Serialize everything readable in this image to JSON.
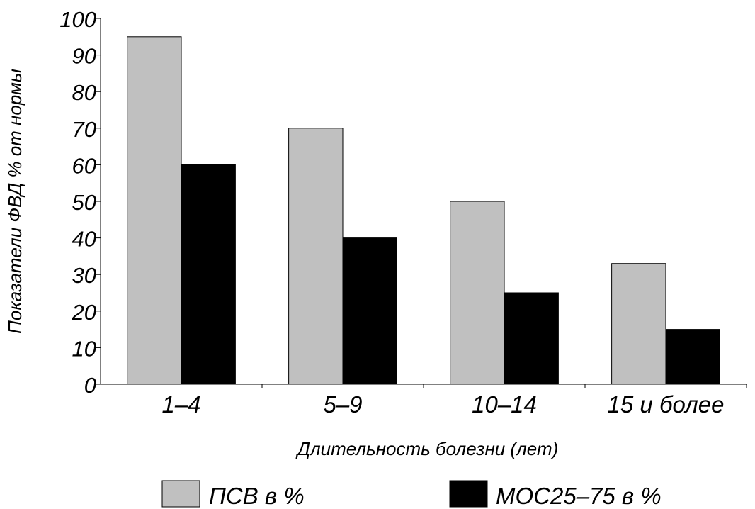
{
  "chart_data": {
    "type": "bar",
    "categories": [
      "1–4",
      "5–9",
      "10–14",
      "15 и более"
    ],
    "series": [
      {
        "name": "ПСВ в %",
        "color": "#c0c0c0",
        "values": [
          95,
          70,
          50,
          33
        ]
      },
      {
        "name": "МОС25–75 в %",
        "color": "#000000",
        "values": [
          60,
          40,
          25,
          15
        ]
      }
    ],
    "yticks": [
      "0",
      "10",
      "20",
      "30",
      "40",
      "50",
      "60",
      "70",
      "80",
      "90",
      "100"
    ],
    "ylim": [
      0,
      100
    ],
    "xlabel": "Длительность болезни (лет)",
    "ylabel": "Показатели ФВД % от нормы",
    "grid": false,
    "legend_position": "bottom"
  }
}
